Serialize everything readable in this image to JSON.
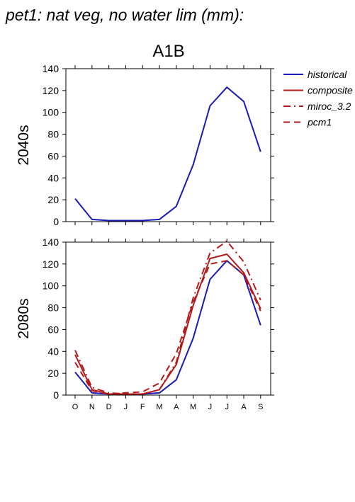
{
  "chart_data": {
    "type": "line",
    "title": "pet1: nat veg, no water lim (mm):",
    "scenario": "A1B",
    "categories": [
      "O",
      "N",
      "D",
      "J",
      "F",
      "M",
      "A",
      "M",
      "J",
      "J",
      "A",
      "S"
    ],
    "ylim": [
      0,
      140
    ],
    "yticks": [
      0,
      20,
      40,
      60,
      80,
      100,
      120,
      140
    ],
    "grid": false,
    "legend_position": "right",
    "series_styles": [
      {
        "name": "historical",
        "color": "#1a1ab4",
        "dash": "none"
      },
      {
        "name": "composite",
        "color": "#b41a1a",
        "dash": "none"
      },
      {
        "name": "miroc_3.2",
        "color": "#b41a1a",
        "dash": "dashdot"
      },
      {
        "name": "pcm1",
        "color": "#b41a1a",
        "dash": "dashed"
      }
    ],
    "panels": [
      {
        "label": "2040s",
        "show_xlabels": false,
        "series": [
          {
            "name": "historical",
            "values": [
              21,
              2,
              1,
              1,
              1,
              2,
              14,
              52,
              106,
              123,
              110,
              64
            ]
          }
        ]
      },
      {
        "label": "2080s",
        "show_xlabels": true,
        "series": [
          {
            "name": "historical",
            "values": [
              21,
              2,
              1,
              1,
              1,
              2,
              14,
              52,
              106,
              123,
              110,
              64
            ]
          },
          {
            "name": "composite",
            "values": [
              37,
              5,
              1,
              1,
              1,
              5,
              28,
              82,
              125,
              129,
              112,
              79
            ]
          },
          {
            "name": "miroc_3.2",
            "values": [
              41,
              7,
              2,
              1,
              1,
              5,
              30,
              89,
              130,
              141,
              122,
              87
            ]
          },
          {
            "name": "pcm1",
            "values": [
              30,
              4,
              1,
              2,
              3,
              11,
              38,
              85,
              120,
              123,
              110,
              77
            ]
          }
        ]
      }
    ]
  }
}
